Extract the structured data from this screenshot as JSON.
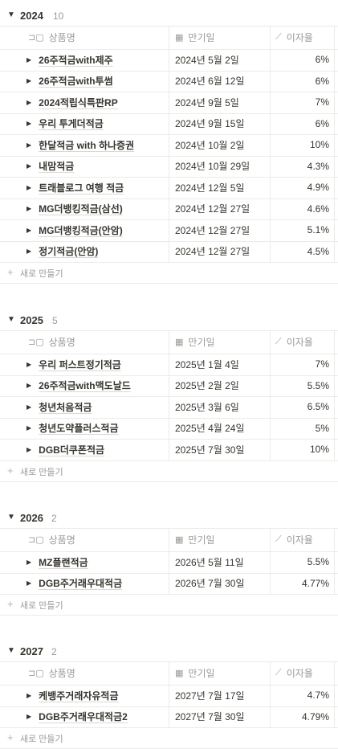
{
  "columns": {
    "name": "상품명",
    "maturity": "만기일",
    "rate": "이자율"
  },
  "new_row_label": "새로 만들기",
  "groups": [
    {
      "year": "2024",
      "count": "10",
      "rows": [
        {
          "name": "26주적금with제주",
          "date": "2024년 5월 2일",
          "rate": "6%"
        },
        {
          "name": "26주적금with투썸",
          "date": "2024년 6월 12일",
          "rate": "6%"
        },
        {
          "name": "2024적립식특판RP",
          "date": "2024년 9월 5일",
          "rate": "7%"
        },
        {
          "name": "우리 투게더적금",
          "date": "2024년 9월 15일",
          "rate": "6%"
        },
        {
          "name": "한달적금 with 하나증권",
          "date": "2024년 10월 2일",
          "rate": "10%"
        },
        {
          "name": "내맘적금",
          "date": "2024년 10월 29일",
          "rate": "4.3%"
        },
        {
          "name": "트래블로그 여행 적금",
          "date": "2024년 12월 5일",
          "rate": "4.9%"
        },
        {
          "name": "MG더뱅킹적금(삼선)",
          "date": "2024년 12월 27일",
          "rate": "4.6%"
        },
        {
          "name": "MG더뱅킹적금(안암)",
          "date": "2024년 12월 27일",
          "rate": "5.1%"
        },
        {
          "name": "정기적금(안암)",
          "date": "2024년 12월 27일",
          "rate": "4.5%"
        }
      ]
    },
    {
      "year": "2025",
      "count": "5",
      "rows": [
        {
          "name": "우리 퍼스트정기적금",
          "date": "2025년 1월 4일",
          "rate": "7%"
        },
        {
          "name": "26주적금with맥도날드",
          "date": "2025년 2월 2일",
          "rate": "5.5%"
        },
        {
          "name": "청년처음적금",
          "date": "2025년 3월 6일",
          "rate": "6.5%"
        },
        {
          "name": "청년도약플러스적금",
          "date": "2025년 4월 24일",
          "rate": "5%"
        },
        {
          "name": "DGB더쿠폰적금",
          "date": "2025년 7월 30일",
          "rate": "10%"
        }
      ]
    },
    {
      "year": "2026",
      "count": "2",
      "rows": [
        {
          "name": "MZ플랜적금",
          "date": "2026년 5월 11일",
          "rate": "5.5%"
        },
        {
          "name": "DGB주거래우대적금",
          "date": "2026년 7월 30일",
          "rate": "4.77%"
        }
      ]
    },
    {
      "year": "2027",
      "count": "2",
      "rows": [
        {
          "name": "케뱅주거래자유적금",
          "date": "2027년 7월 17일",
          "rate": "4.7%"
        },
        {
          "name": "DGB주거래우대적금2",
          "date": "2027년 7월 30일",
          "rate": "4.79%"
        }
      ]
    }
  ]
}
